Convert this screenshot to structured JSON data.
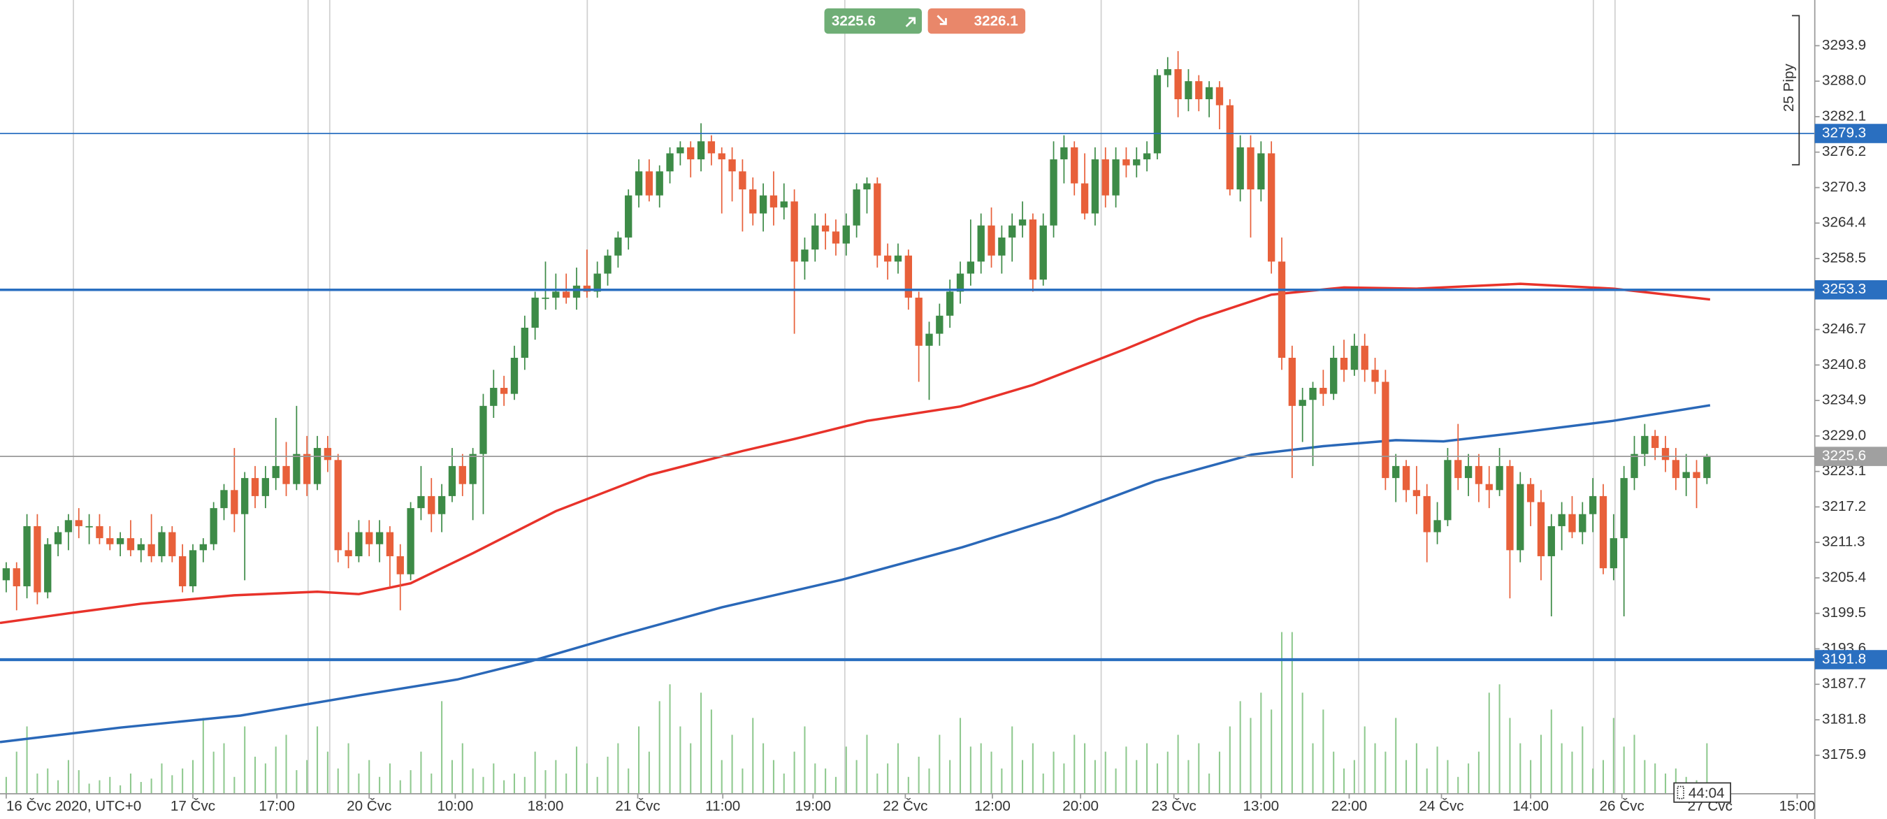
{
  "chart_data": {
    "type": "candlestick",
    "xlim": [
      -0.6,
      174.4
    ],
    "ylim": [
      3169.5,
      3301.5
    ],
    "grid": false,
    "up_color": "#3d8b47",
    "down_color": "#e8603a",
    "yticks": [
      3293.9,
      {
        "value": 3288,
        "label": "3288.0"
      },
      3282.1,
      3276.2,
      3270.3,
      3264.4,
      3258.5,
      3246.7,
      3240.8,
      3234.9,
      {
        "value": 3229,
        "label": "3229.0"
      },
      3223.1,
      3217.2,
      3211.3,
      3205.4,
      3199.5,
      3193.6,
      3187.7,
      3181.8,
      3175.9
    ],
    "xticks": [
      {
        "value": 0,
        "label": "16 Čvc 2020, UTC+0"
      },
      {
        "value": 18,
        "label": "17 Čvc"
      },
      {
        "value": 26.1,
        "label": "17:00"
      },
      {
        "value": 35,
        "label": "20 Čvc"
      },
      {
        "value": 43.3,
        "label": "10:00"
      },
      {
        "value": 52,
        "label": "18:00"
      },
      {
        "value": 60.9,
        "label": "21 Čvc"
      },
      {
        "value": 69.1,
        "label": "11:00"
      },
      {
        "value": 77.8,
        "label": "19:00"
      },
      {
        "value": 86.7,
        "label": "22 Čvc"
      },
      {
        "value": 95.1,
        "label": "12:00"
      },
      {
        "value": 103.6,
        "label": "20:00"
      },
      {
        "value": 112.6,
        "label": "23 Čvc"
      },
      {
        "value": 121,
        "label": "13:00"
      },
      {
        "value": 129.5,
        "label": "22:00"
      },
      {
        "value": 138.4,
        "label": "24 Čvc"
      },
      {
        "value": 147,
        "label": "14:00"
      },
      {
        "value": 155.8,
        "label": "26 Čvc"
      },
      {
        "value": 164.3,
        "label": "27 Čvc"
      },
      {
        "value": 172.7,
        "label": "15:00"
      }
    ],
    "candles": [
      [
        3205,
        3208,
        3203,
        3207
      ],
      [
        3207,
        3208,
        3200,
        3204
      ],
      [
        3204,
        3216,
        3202,
        3214
      ],
      [
        3214,
        3216,
        3201,
        3203
      ],
      [
        3203,
        3212,
        3202,
        3211
      ],
      [
        3211,
        3214,
        3209,
        3213
      ],
      [
        3213,
        3216,
        3210,
        3215
      ],
      [
        3215,
        3217,
        3212,
        3214
      ],
      [
        3214,
        3216,
        3211,
        3214
      ],
      [
        3214,
        3216,
        3211,
        3212
      ],
      [
        3212,
        3214,
        3210,
        3211
      ],
      [
        3211,
        3213,
        3209,
        3212
      ],
      [
        3212,
        3215,
        3209,
        3210
      ],
      [
        3210,
        3212,
        3208,
        3211
      ],
      [
        3211,
        3216,
        3208,
        3209
      ],
      [
        3209,
        3214,
        3208,
        3213
      ],
      [
        3213,
        3214,
        3208,
        3209
      ],
      [
        3209,
        3211,
        3203,
        3204
      ],
      [
        3204,
        3211,
        3203,
        3210
      ],
      [
        3210,
        3212,
        3208,
        3211
      ],
      [
        3211,
        3218,
        3210,
        3217
      ],
      [
        3217,
        3221,
        3215,
        3220
      ],
      [
        3220,
        3227,
        3213,
        3216
      ],
      [
        3216,
        3223,
        3205,
        3222
      ],
      [
        3222,
        3224,
        3217,
        3219
      ],
      [
        3219,
        3224,
        3217,
        3222
      ],
      [
        3222,
        3232,
        3220,
        3224
      ],
      [
        3224,
        3228,
        3219,
        3221
      ],
      [
        3221,
        3234,
        3220,
        3226
      ],
      [
        3226,
        3229,
        3219,
        3221
      ],
      [
        3221,
        3229,
        3220,
        3227
      ],
      [
        3227,
        3229,
        3223,
        3225
      ],
      [
        3225,
        3226,
        3208,
        3210
      ],
      [
        3210,
        3213,
        3207,
        3209
      ],
      [
        3209,
        3215,
        3208,
        3213
      ],
      [
        3213,
        3215,
        3209,
        3211
      ],
      [
        3211,
        3215,
        3208,
        3213
      ],
      [
        3213,
        3214,
        3204,
        3209
      ],
      [
        3209,
        3211,
        3200,
        3206
      ],
      [
        3206,
        3218,
        3205,
        3217
      ],
      [
        3217,
        3224,
        3215,
        3219
      ],
      [
        3219,
        3222,
        3213,
        3216
      ],
      [
        3216,
        3221,
        3213,
        3219
      ],
      [
        3219,
        3227,
        3218,
        3224
      ],
      [
        3224,
        3226,
        3219,
        3221
      ],
      [
        3221,
        3227,
        3215,
        3226
      ],
      [
        3226,
        3236,
        3216,
        3234
      ],
      [
        3234,
        3240,
        3232,
        3237
      ],
      [
        3237,
        3239,
        3234,
        3236
      ],
      [
        3236,
        3244,
        3235,
        3242
      ],
      [
        3242,
        3249,
        3240,
        3247
      ],
      [
        3247,
        3253,
        3245,
        3252
      ],
      [
        3252,
        3258,
        3250,
        3252
      ],
      [
        3252,
        3256,
        3250,
        3253
      ],
      [
        3253,
        3256,
        3251,
        3252
      ],
      [
        3252,
        3257,
        3250,
        3254
      ],
      [
        3254,
        3260,
        3252,
        3253
      ],
      [
        3253,
        3258,
        3252,
        3256
      ],
      [
        3256,
        3260,
        3254,
        3259
      ],
      [
        3259,
        3263,
        3257,
        3262
      ],
      [
        3262,
        3270,
        3260,
        3269
      ],
      [
        3269,
        3275,
        3267,
        3273
      ],
      [
        3273,
        3275,
        3268,
        3269
      ],
      [
        3269,
        3274,
        3267,
        3273
      ],
      [
        3273,
        3277,
        3271,
        3276
      ],
      [
        3276,
        3278,
        3274,
        3277
      ],
      [
        3277,
        3278,
        3272,
        3275
      ],
      [
        3275,
        3281,
        3273,
        3278
      ],
      [
        3278,
        3279,
        3274,
        3276
      ],
      [
        3276,
        3277,
        3266,
        3275
      ],
      [
        3275,
        3277,
        3268,
        3273
      ],
      [
        3273,
        3275,
        3263,
        3270
      ],
      [
        3270,
        3272,
        3264,
        3266
      ],
      [
        3266,
        3271,
        3263,
        3269
      ],
      [
        3269,
        3273,
        3264,
        3267
      ],
      [
        3267,
        3271,
        3265,
        3268
      ],
      [
        3268,
        3270,
        3246,
        3258
      ],
      [
        3258,
        3262,
        3255,
        3260
      ],
      [
        3260,
        3266,
        3258,
        3264
      ],
      [
        3264,
        3266,
        3260,
        3263
      ],
      [
        3263,
        3265,
        3259,
        3261
      ],
      [
        3261,
        3266,
        3259,
        3264
      ],
      [
        3264,
        3271,
        3262,
        3270
      ],
      [
        3270,
        3272,
        3266,
        3271
      ],
      [
        3271,
        3272,
        3257,
        3259
      ],
      [
        3259,
        3261,
        3255,
        3258
      ],
      [
        3258,
        3261,
        3256,
        3259
      ],
      [
        3259,
        3260,
        3250,
        3252
      ],
      [
        3252,
        3253,
        3238,
        3244
      ],
      [
        3244,
        3248,
        3235,
        3246
      ],
      [
        3246,
        3251,
        3244,
        3249
      ],
      [
        3249,
        3255,
        3247,
        3253
      ],
      [
        3253,
        3258,
        3251,
        3256
      ],
      [
        3256,
        3265,
        3254,
        3258
      ],
      [
        3258,
        3266,
        3256,
        3264
      ],
      [
        3264,
        3267,
        3257,
        3259
      ],
      [
        3259,
        3264,
        3256,
        3262
      ],
      [
        3262,
        3266,
        3258,
        3264
      ],
      [
        3264,
        3268,
        3262,
        3265
      ],
      [
        3265,
        3266,
        3253,
        3255
      ],
      [
        3255,
        3266,
        3254,
        3264
      ],
      [
        3264,
        3278,
        3262,
        3275
      ],
      [
        3275,
        3279,
        3271,
        3277
      ],
      [
        3277,
        3278,
        3269,
        3271
      ],
      [
        3271,
        3276,
        3265,
        3266
      ],
      [
        3266,
        3277,
        3264,
        3275
      ],
      [
        3275,
        3277,
        3267,
        3269
      ],
      [
        3269,
        3277,
        3267,
        3275
      ],
      [
        3275,
        3277,
        3272,
        3274
      ],
      [
        3274,
        3277,
        3272,
        3275
      ],
      [
        3275,
        3278,
        3273,
        3276
      ],
      [
        3276,
        3290,
        3275,
        3289
      ],
      [
        3289,
        3292,
        3287,
        3290
      ],
      [
        3290,
        3293,
        3282,
        3285
      ],
      [
        3285,
        3290,
        3283,
        3288
      ],
      [
        3288,
        3289,
        3283,
        3285
      ],
      [
        3285,
        3288,
        3282,
        3287
      ],
      [
        3287,
        3288,
        3280,
        3284
      ],
      [
        3284,
        3285,
        3269,
        3270
      ],
      [
        3270,
        3279,
        3268,
        3277
      ],
      [
        3277,
        3279,
        3262,
        3270
      ],
      [
        3270,
        3278,
        3268,
        3276
      ],
      [
        3276,
        3278,
        3256,
        3258
      ],
      [
        3258,
        3262,
        3240,
        3242
      ],
      [
        3242,
        3244,
        3222,
        3234
      ],
      [
        3234,
        3237,
        3228,
        3235
      ],
      [
        3235,
        3238,
        3224,
        3237
      ],
      [
        3237,
        3240,
        3234,
        3236
      ],
      [
        3236,
        3244,
        3235,
        3242
      ],
      [
        3242,
        3245,
        3238,
        3240
      ],
      [
        3240,
        3246,
        3239,
        3244
      ],
      [
        3244,
        3246,
        3238,
        3240
      ],
      [
        3240,
        3242,
        3236,
        3238
      ],
      [
        3238,
        3240,
        3220,
        3222
      ],
      [
        3222,
        3226,
        3218,
        3224
      ],
      [
        3224,
        3225,
        3218,
        3220
      ],
      [
        3220,
        3224,
        3216,
        3219
      ],
      [
        3219,
        3221,
        3208,
        3213
      ],
      [
        3213,
        3218,
        3211,
        3215
      ],
      [
        3215,
        3227,
        3214,
        3225
      ],
      [
        3225,
        3231,
        3220,
        3222
      ],
      [
        3222,
        3226,
        3219,
        3224
      ],
      [
        3224,
        3226,
        3218,
        3221
      ],
      [
        3221,
        3224,
        3217,
        3220
      ],
      [
        3220,
        3227,
        3219,
        3224
      ],
      [
        3224,
        3225,
        3202,
        3210
      ],
      [
        3210,
        3223,
        3208,
        3221
      ],
      [
        3221,
        3222,
        3214,
        3218
      ],
      [
        3218,
        3220,
        3205,
        3209
      ],
      [
        3209,
        3216,
        3199,
        3214
      ],
      [
        3214,
        3218,
        3210,
        3216
      ],
      [
        3216,
        3219,
        3212,
        3213
      ],
      [
        3213,
        3218,
        3211,
        3216
      ],
      [
        3216,
        3222,
        3213,
        3219
      ],
      [
        3219,
        3221,
        3206,
        3207
      ],
      [
        3207,
        3216,
        3205,
        3212
      ],
      [
        3212,
        3224,
        3199,
        3222
      ],
      [
        3222,
        3229,
        3220,
        3226
      ],
      [
        3226,
        3231,
        3224,
        3229
      ],
      [
        3229,
        3230,
        3225,
        3227
      ],
      [
        3227,
        3229,
        3223,
        3225
      ],
      [
        3225,
        3227,
        3220,
        3222
      ],
      [
        3222,
        3226,
        3219,
        3223
      ],
      [
        3223,
        3225,
        3217,
        3222
      ],
      [
        3222,
        3226,
        3221,
        3225.6
      ]
    ],
    "volume": {
      "color": "#8fc98f",
      "lim": [
        0,
        100
      ],
      "values": [
        10,
        25,
        40,
        12,
        15,
        8,
        20,
        14,
        6,
        8,
        10,
        5,
        12,
        7,
        9,
        18,
        11,
        15,
        20,
        45,
        25,
        30,
        10,
        40,
        22,
        18,
        28,
        35,
        14,
        20,
        40,
        25,
        15,
        30,
        12,
        20,
        10,
        18,
        8,
        14,
        25,
        12,
        55,
        20,
        30,
        15,
        10,
        18,
        8,
        12,
        10,
        25,
        14,
        20,
        12,
        28,
        18,
        10,
        22,
        30,
        15,
        40,
        25,
        55,
        65,
        40,
        30,
        60,
        50,
        20,
        35,
        15,
        45,
        30,
        20,
        12,
        25,
        40,
        18,
        15,
        10,
        28,
        20,
        35,
        12,
        18,
        30,
        10,
        22,
        15,
        35,
        20,
        45,
        28,
        30,
        25,
        15,
        40,
        20,
        30,
        12,
        25,
        18,
        35,
        30,
        20,
        25,
        15,
        28,
        20,
        30,
        18,
        25,
        35,
        20,
        30,
        12,
        25,
        40,
        55,
        45,
        60,
        50,
        96,
        96,
        60,
        30,
        50,
        25,
        15,
        20,
        40,
        30,
        25,
        45,
        20,
        30,
        15,
        28,
        20,
        10,
        18,
        25,
        60,
        65,
        45,
        30,
        20,
        35,
        50,
        30,
        25,
        40,
        15,
        20,
        45,
        28,
        35,
        20,
        18,
        12,
        15,
        10,
        8,
        30
      ]
    },
    "ma": [
      {
        "color": "#e8322a",
        "x": [
          -0.6,
          6,
          13,
          22,
          30,
          34,
          39,
          45,
          53,
          62,
          71,
          76,
          83,
          92,
          99,
          108,
          115,
          122,
          129,
          136,
          146,
          155,
          164.3
        ],
        "values": [
          3197.9,
          3199.5,
          3201.1,
          3202.5,
          3203.1,
          3202.7,
          3204.5,
          3209.5,
          3216.5,
          3222.5,
          3226.5,
          3228.5,
          3231.5,
          3233.9,
          3237.5,
          3243.5,
          3248.5,
          3252.5,
          3253.7,
          3253.5,
          3254.3,
          3253.5,
          3251.7
        ]
      },
      {
        "color": "#2a68b8",
        "x": [
          -0.6,
          11,
          22.6,
          34.2,
          43.5,
          50.5,
          59.7,
          69,
          80.6,
          92.2,
          101.5,
          110.8,
          120.1,
          127,
          134,
          138.6,
          145.6,
          154.9,
          164.3
        ],
        "values": [
          3178.1,
          3180.5,
          3182.5,
          3185.9,
          3188.5,
          3191.5,
          3196.1,
          3200.5,
          3205.1,
          3210.5,
          3215.5,
          3221.5,
          3225.9,
          3227.3,
          3228.3,
          3228.1,
          3229.5,
          3231.5,
          3234.1
        ]
      }
    ],
    "levels": [
      3279.3,
      3253.3,
      3191.8
    ],
    "level_color": "#2a6fc0",
    "current_price": 3225.6,
    "sell_price": 3225.6,
    "buy_price": 3226.1,
    "range_label": "25 Pipy",
    "countdown": "44:04"
  }
}
